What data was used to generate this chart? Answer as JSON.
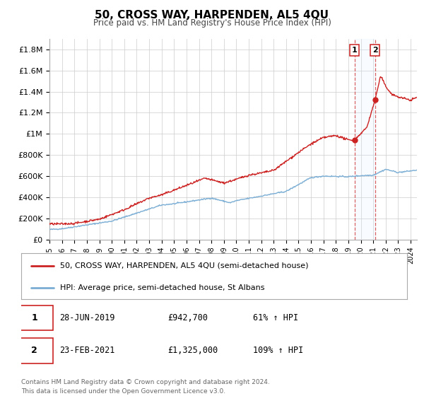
{
  "title": "50, CROSS WAY, HARPENDEN, AL5 4QU",
  "subtitle": "Price paid vs. HM Land Registry's House Price Index (HPI)",
  "ylim": [
    0,
    1900000
  ],
  "xlim_start": 1995.0,
  "xlim_end": 2024.5,
  "background_color": "#ffffff",
  "grid_color": "#cccccc",
  "event1_x": 2019.49,
  "event2_x": 2021.15,
  "event1_y": 942700,
  "event2_y": 1325000,
  "hpi_color": "#7aadd4",
  "price_color": "#cc2222",
  "shade_color": "#ddeeff",
  "legend_label1": "50, CROSS WAY, HARPENDEN, AL5 4QU (semi-detached house)",
  "legend_label2": "HPI: Average price, semi-detached house, St Albans",
  "table_row1": [
    "1",
    "28-JUN-2019",
    "£942,700",
    "61% ↑ HPI"
  ],
  "table_row2": [
    "2",
    "23-FEB-2021",
    "£1,325,000",
    "109% ↑ HPI"
  ],
  "footer1": "Contains HM Land Registry data © Crown copyright and database right 2024.",
  "footer2": "This data is licensed under the Open Government Licence v3.0."
}
